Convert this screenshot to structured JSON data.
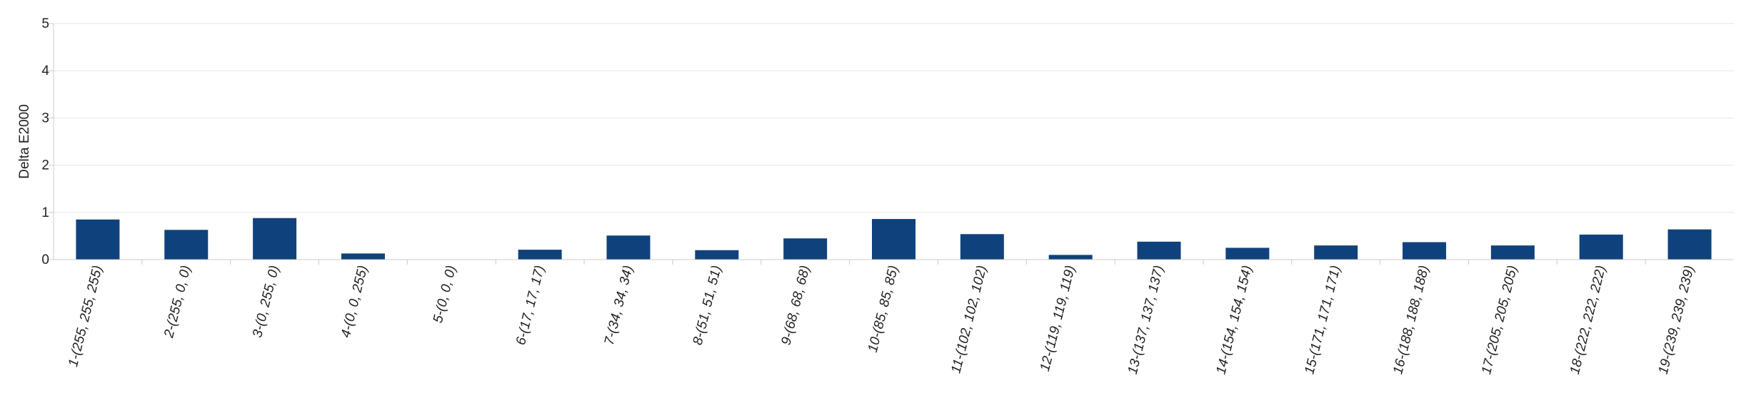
{
  "chart_data": {
    "type": "bar",
    "title": "",
    "xlabel": "",
    "ylabel": "Delta E2000",
    "ylim": [
      0,
      5
    ],
    "yticks": [
      0,
      1,
      2,
      3,
      4,
      5
    ],
    "grid": true,
    "legend": "none",
    "bar_color": "#0f427c",
    "categories": [
      "1-(255, 255, 255)",
      "2-(255, 0, 0)",
      "3-(0, 255, 0)",
      "4-(0, 0, 255)",
      "5-(0, 0, 0)",
      "6-(17, 17, 17)",
      "7-(34, 34, 34)",
      "8-(51, 51, 51)",
      "9-(68, 68, 68)",
      "10-(85, 85, 85)",
      "11-(102, 102, 102)",
      "12-(119, 119, 119)",
      "13-(137, 137, 137)",
      "14-(154, 154, 154)",
      "15-(171, 171, 171)",
      "16-(188, 188, 188)",
      "17-(205, 205, 205)",
      "18-(222, 222, 222)",
      "19-(239, 239, 239)"
    ],
    "values": [
      0.85,
      0.63,
      0.88,
      0.13,
      0.0,
      0.21,
      0.51,
      0.2,
      0.45,
      0.86,
      0.54,
      0.1,
      0.38,
      0.25,
      0.3,
      0.37,
      0.3,
      0.53,
      0.64
    ]
  }
}
